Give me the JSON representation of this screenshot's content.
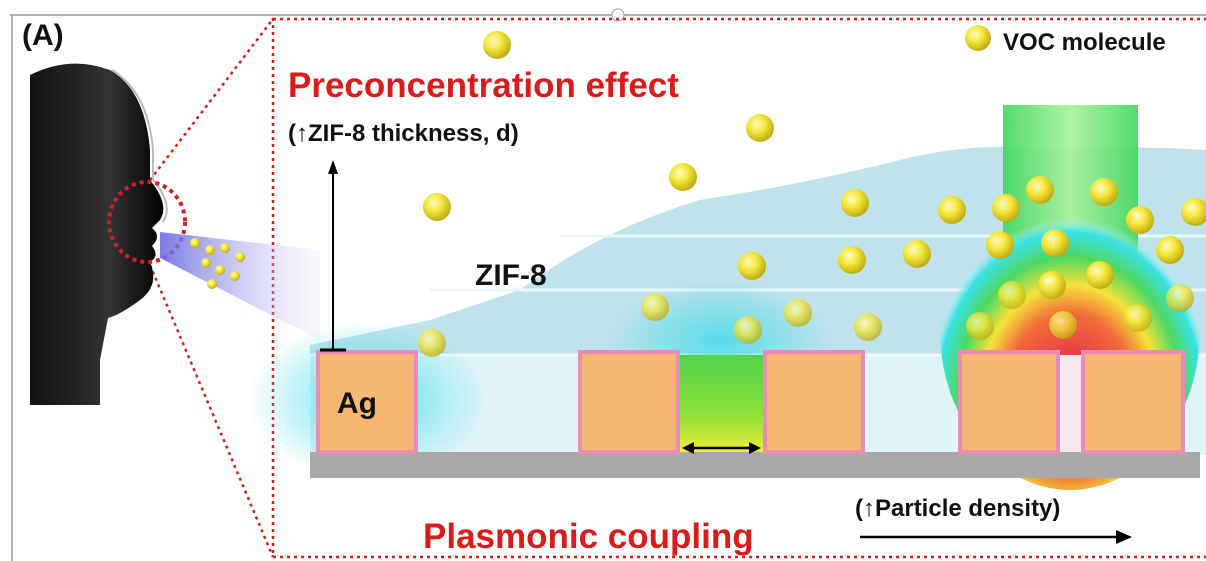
{
  "panel_label": "(A)",
  "legend": {
    "label": "VOC molecule"
  },
  "preconcentration": {
    "title": "Preconcentration effect",
    "note": "(↑ZIF-8 thickness, d)"
  },
  "layer_label": "ZIF-8",
  "particle_label": "Ag",
  "plasmonic": {
    "title": "Plasmonic coupling",
    "note": "(↑Particle density)"
  }
}
